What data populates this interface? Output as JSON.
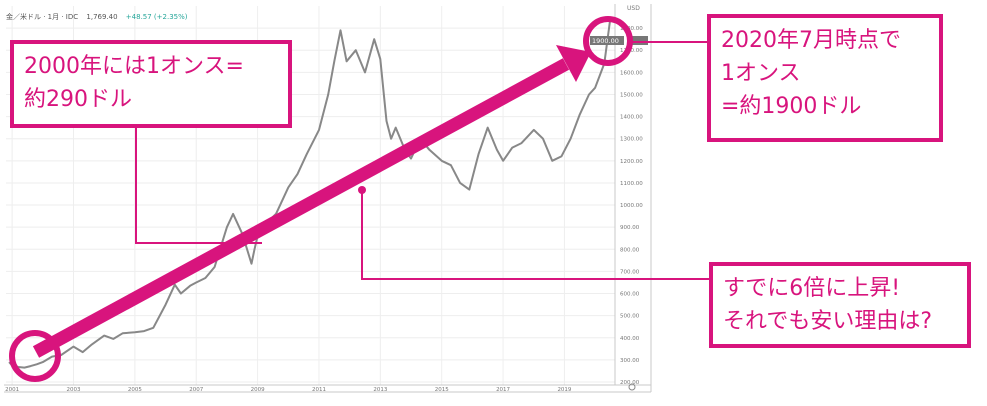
{
  "header": {
    "symbol": "金／米ドル · 1月 · IDC",
    "last": "1,769.40",
    "change": "+48.57 (+2.35%)"
  },
  "price_tag": "1900.00",
  "callouts": {
    "left": [
      "2000年には1オンス=",
      "約290ドル"
    ],
    "right": [
      "2020年7月時点で",
      "1オンス",
      "=約1900ドル"
    ],
    "bottom": [
      "すでに6倍に上昇!",
      "それでも安い理由は?"
    ]
  },
  "colors": {
    "accent": "#d8147d",
    "line": "#888888",
    "grid": "#eeeeee",
    "axis_text": "#777777"
  },
  "chart_data": {
    "type": "line",
    "title": "",
    "xlabel": "",
    "ylabel": "",
    "ylim": [
      200,
      1900
    ],
    "xlim": [
      2000.8,
      2020.55
    ],
    "y_ticks": [
      "200.00",
      "300.00",
      "400.00",
      "500.00",
      "600.00",
      "700.00",
      "800.00",
      "900.00",
      "1000.00",
      "1100.00",
      "1200.00",
      "1300.00",
      "1400.00",
      "1500.00",
      "1600.00",
      "1700.00",
      "1800.00"
    ],
    "x_ticks": [
      {
        "x": 2001,
        "label": "2001"
      },
      {
        "x": 2003,
        "label": "2003"
      },
      {
        "x": 2005,
        "label": "2005"
      },
      {
        "x": 2007,
        "label": "2007"
      },
      {
        "x": 2009,
        "label": "2009"
      },
      {
        "x": 2011,
        "label": "2011"
      },
      {
        "x": 2013,
        "label": "2013"
      },
      {
        "x": 2015,
        "label": "2015"
      },
      {
        "x": 2017,
        "label": "2017"
      },
      {
        "x": 2019,
        "label": "2019"
      }
    ],
    "series": [
      {
        "x": [
          2000.9,
          2001.0,
          2001.2,
          2001.4,
          2001.6,
          2001.8,
          2002.0,
          2002.3,
          2002.6,
          2003.0,
          2003.3,
          2003.6,
          2004.0,
          2004.3,
          2004.6,
          2005.0,
          2005.3,
          2005.6,
          2006.0,
          2006.3,
          2006.5,
          2006.8,
          2007.0,
          2007.3,
          2007.6,
          2008.0,
          2008.2,
          2008.5,
          2008.8,
          2008.9,
          2009.0,
          2009.3,
          2009.6,
          2010.0,
          2010.3,
          2010.6,
          2011.0,
          2011.3,
          2011.5,
          2011.7,
          2011.9,
          2012.2,
          2012.5,
          2012.8,
          2013.0,
          2013.2,
          2013.35,
          2013.5,
          2013.8,
          2014.0,
          2014.3,
          2014.6,
          2015.0,
          2015.3,
          2015.6,
          2015.9,
          2016.2,
          2016.5,
          2016.8,
          2017.0,
          2017.3,
          2017.6,
          2018.0,
          2018.3,
          2018.6,
          2018.9,
          2019.2,
          2019.5,
          2019.8,
          2020.0,
          2020.3,
          2020.5
        ],
        "values": [
          290,
          275,
          268,
          265,
          272,
          280,
          290,
          315,
          322,
          360,
          335,
          370,
          410,
          395,
          420,
          425,
          430,
          445,
          550,
          640,
          600,
          635,
          650,
          670,
          720,
          900,
          960,
          870,
          735,
          800,
          860,
          920,
          960,
          1080,
          1140,
          1230,
          1340,
          1500,
          1650,
          1790,
          1650,
          1700,
          1600,
          1750,
          1660,
          1380,
          1300,
          1350,
          1250,
          1210,
          1300,
          1250,
          1200,
          1180,
          1100,
          1070,
          1230,
          1350,
          1250,
          1200,
          1260,
          1280,
          1340,
          1300,
          1200,
          1220,
          1300,
          1410,
          1500,
          1530,
          1640,
          1850
        ]
      }
    ]
  }
}
